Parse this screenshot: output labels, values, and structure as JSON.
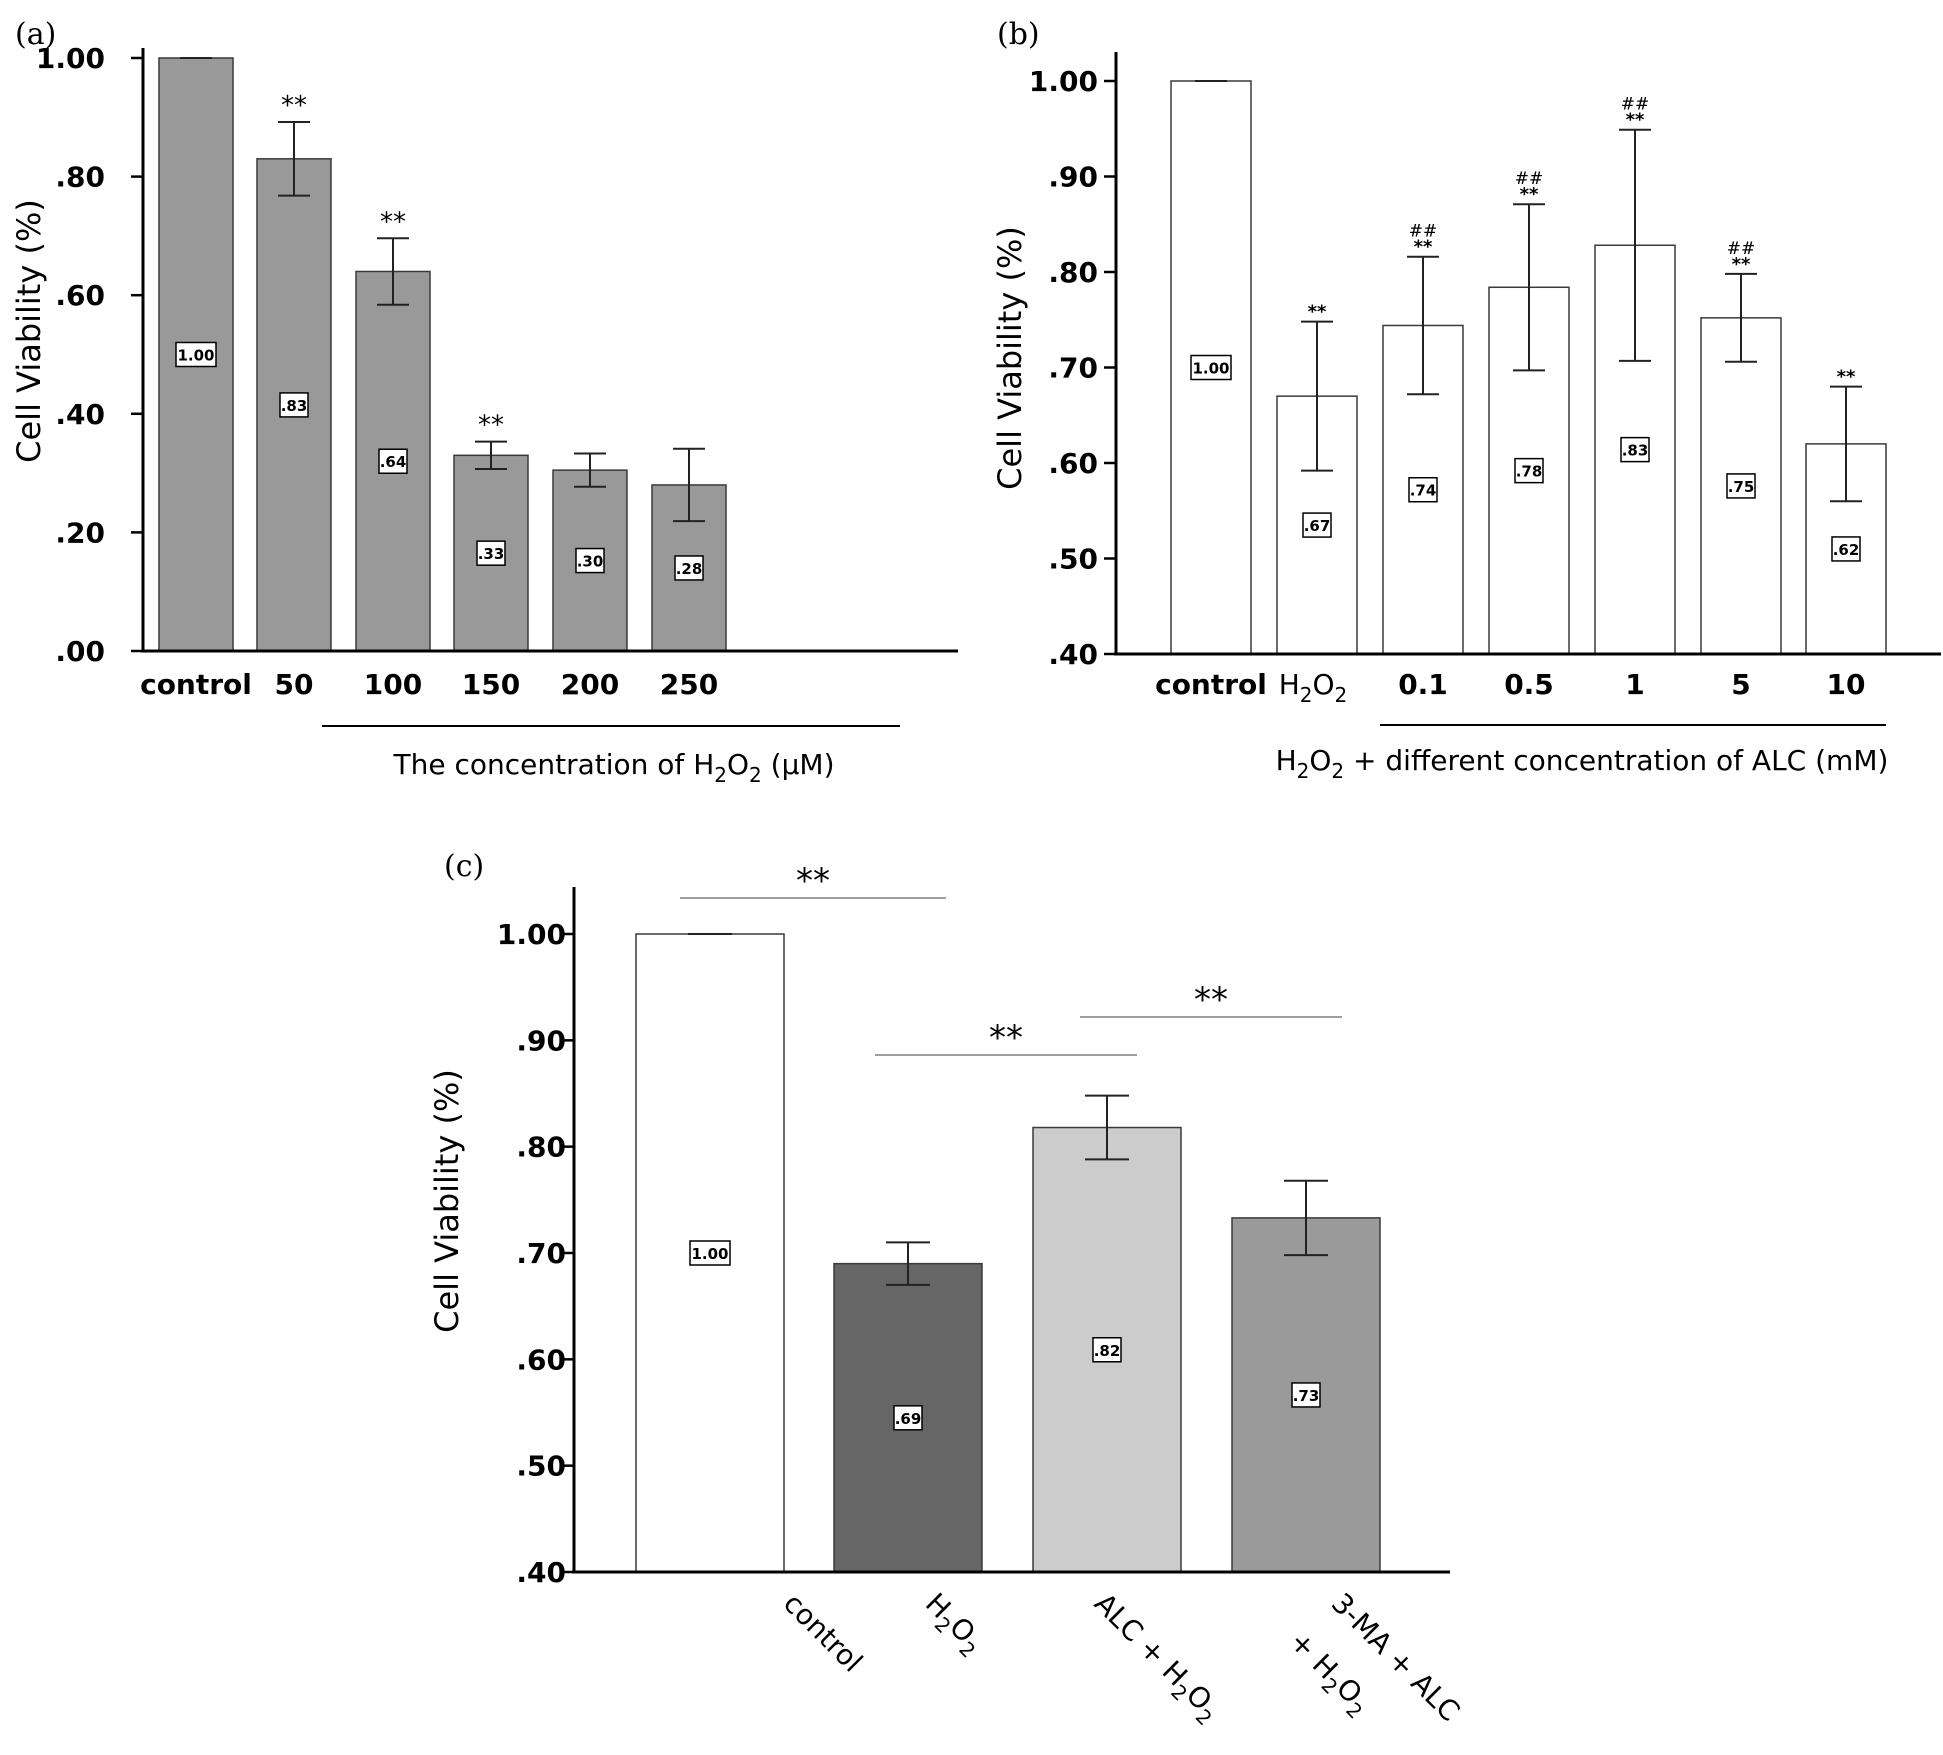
{
  "figure": {
    "colors": {
      "bar_gray": "#999999",
      "bar_white": "#ffffff",
      "bar_dark": "#666666",
      "bar_light": "#cccccc",
      "bar_mid": "#9a9a9a",
      "axis": "#000000",
      "bracket": "#a0a0a0"
    }
  },
  "chart_data": [
    {
      "panel": "(a)",
      "type": "bar",
      "ylabel": "Cell Viability (%)",
      "xlabel_main": "The concentration of H",
      "xlabel_sub1": "2",
      "xlabel_mid": "O",
      "xlabel_sub2": "2",
      "xlabel_tail": " (μM)",
      "ylim": [
        0,
        1.05
      ],
      "yticks": [
        0,
        0.2,
        0.4,
        0.6,
        0.8,
        1.0
      ],
      "ytick_labels": [
        ".00",
        ".20",
        ".40",
        ".60",
        ".80",
        "1.00"
      ],
      "categories": [
        "control",
        "50",
        "100",
        "150",
        "200",
        "250"
      ],
      "values": [
        1.0,
        0.83,
        0.64,
        0.33,
        0.305,
        0.28
      ],
      "errors": [
        0.0,
        0.062,
        0.056,
        0.023,
        0.028,
        0.061
      ],
      "value_labels": [
        "1.00",
        ".83",
        ".64",
        ".33",
        ".30",
        ".28"
      ],
      "significance": [
        "",
        "**",
        "**",
        "**",
        "",
        ""
      ],
      "bar_colors": [
        "gray",
        "gray",
        "gray",
        "gray",
        "gray",
        "gray"
      ]
    },
    {
      "panel": "(b)",
      "type": "bar",
      "ylabel": "Cell Viability (%)",
      "xlabel_main": "H",
      "xlabel_sub1": "2",
      "xlabel_mid": "O",
      "xlabel_sub2": "2",
      "xlabel_tail": " + different concentration of ALC (mM)",
      "ylim": [
        0.4,
        1.03
      ],
      "yticks": [
        0.4,
        0.5,
        0.6,
        0.7,
        0.8,
        0.9,
        1.0
      ],
      "ytick_labels": [
        ".40",
        ".50",
        ".60",
        ".70",
        ".80",
        ".90",
        "1.00"
      ],
      "categories": [
        "control",
        "H2O2",
        "0.1",
        "0.5",
        "1",
        "5",
        "10"
      ],
      "values": [
        1.0,
        0.67,
        0.744,
        0.784,
        0.828,
        0.752,
        0.62
      ],
      "errors": [
        0.0,
        0.078,
        0.072,
        0.087,
        0.121,
        0.046,
        0.06
      ],
      "value_labels": [
        "1.00",
        ".67",
        ".74",
        ".78",
        ".83",
        ".75",
        ".62"
      ],
      "significance": [
        "",
        "**",
        "**",
        "**",
        "**",
        "**",
        "**"
      ],
      "hash_significance": [
        "",
        "",
        "##",
        "##",
        "##",
        "##",
        ""
      ],
      "bar_colors": [
        "white",
        "white",
        "white",
        "white",
        "white",
        "white",
        "white"
      ]
    },
    {
      "panel": "(c)",
      "type": "bar",
      "ylabel": "Cell Viability (%)",
      "ylim": [
        0.4,
        1.03
      ],
      "yticks": [
        0.4,
        0.5,
        0.6,
        0.7,
        0.8,
        0.9,
        1.0
      ],
      "ytick_labels": [
        ".40",
        ".50",
        ".60",
        ".70",
        ".80",
        ".90",
        "1.00"
      ],
      "categories": [
        "control",
        "H2O2",
        "ALC + H2O2",
        "3-MA + ALC + H2O2"
      ],
      "values": [
        1.0,
        0.69,
        0.818,
        0.733
      ],
      "errors": [
        0.0,
        0.02,
        0.03,
        0.035
      ],
      "value_labels": [
        "1.00",
        ".69",
        ".82",
        ".73"
      ],
      "bar_colors": [
        "white",
        "dark",
        "light",
        "mid"
      ],
      "brackets": [
        {
          "from": 0,
          "to": 1,
          "label": "**"
        },
        {
          "from": 1,
          "to": 2,
          "label": "**"
        },
        {
          "from": 2,
          "to": 3,
          "label": "**"
        }
      ]
    }
  ],
  "labels_c": {
    "control": "control",
    "h2o2_a": "H",
    "h2o2_b": "2",
    "h2o2_c": "O",
    "h2o2_d": "2",
    "alc_a": "ALC + H",
    "alc_b": "2",
    "alc_c": "O",
    "alc_d": "2",
    "ma_line1": "3-MA + ALC",
    "ma_a": "+ H",
    "ma_b": "2",
    "ma_c": "O",
    "ma_d": "2"
  },
  "labels_b": {
    "h2o2_a": "H",
    "h2o2_b": "2",
    "h2o2_c": "O",
    "h2o2_d": "2"
  }
}
